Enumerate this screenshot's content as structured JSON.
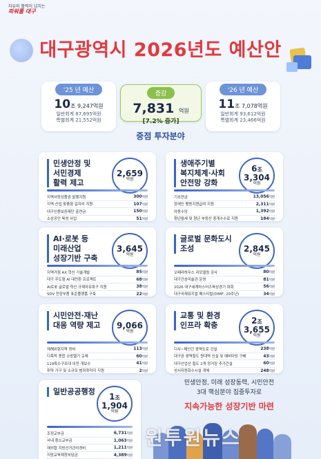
{
  "slogan": {
    "line1": "자유와 활력이 넘치는",
    "line2": "파워풀 대구"
  },
  "title": "대구광역시 2026년도 예산안",
  "summary": {
    "prev": {
      "label": "'25 년 예산",
      "amount_jo": "10",
      "amount_rest": "조 9,247",
      "unit": "억원",
      "general": "일반회계 87,695억원",
      "special": "특별회계 21,552억원"
    },
    "change": {
      "label": "증감",
      "amount": "7,831",
      "unit": "억원",
      "pct": "[7.2% 증가]"
    },
    "next": {
      "label": "'26 년 예산",
      "amount_jo": "11",
      "amount_rest": "조 7,078",
      "unit": "억원",
      "general": "일반회계 93,612억원",
      "special": "특별회계 23,466억원"
    }
  },
  "section_title": "중점 투자분야",
  "panels": [
    {
      "title": [
        "민생안정 및",
        "서민경제",
        "활력 제고"
      ],
      "total": "2,659",
      "total_jo": "",
      "unit": "억원",
      "items": [
        {
          "label": "지역사랑상품권 발행지원",
          "value": "300",
          "unit": "억원"
        },
        {
          "label": "지역·산업 맞춤형 일자리 지원",
          "value": "107",
          "unit": "억원"
        },
        {
          "label": "대구신용보증재단 출연금",
          "value": "150",
          "unit": "억원"
        },
        {
          "label": "소상공인 육성 사업",
          "value": "51",
          "unit": "억원"
        }
      ]
    },
    {
      "title": [
        "생애주기별",
        "복지체계·사회",
        "안전망 강화"
      ],
      "total": "3,304",
      "total_jo": "6",
      "unit": "억원",
      "items": [
        {
          "label": "기초연금",
          "value": "13,056",
          "unit": "억원"
        },
        {
          "label": "장애인 활동지원급여 지원",
          "value": "2,311",
          "unit": "억원"
        },
        {
          "label": "아동수당",
          "value": "1,392",
          "unit": "억원"
        },
        {
          "label": "청년월세 및 청년 부동산 중개수수료 지원",
          "value": "184",
          "unit": "억원"
        }
      ]
    },
    {
      "title": [
        "AI·로봇 등",
        "미래산업",
        "성장기반 구축"
      ],
      "total": "3,645",
      "total_jo": "",
      "unit": "억원",
      "items": [
        {
          "label": "지역거점 AX 혁신 기술개발",
          "value": "85",
          "unit": "억원"
        },
        {
          "label": "대구 주도형 AI 대전환 프로젝트",
          "value": "68",
          "unit": "억원"
        },
        {
          "label": "AI로봇 글로벌 혁신 규제자유특구 지원",
          "value": "38",
          "unit": "억원"
        },
        {
          "label": "SDV 전장부품 표준플랫폼 구축",
          "value": "22",
          "unit": "억원"
        }
      ]
    },
    {
      "title": [
        "글로벌 문화도시",
        "조성"
      ],
      "total": "2,845",
      "total_jo": "",
      "unit": "억원",
      "items": [
        {
          "label": "오페라하우스 리모델링 공사",
          "value": "80",
          "unit": "억원"
        },
        {
          "label": "대구간송미술관 운영",
          "value": "81",
          "unit": "억원"
        },
        {
          "label": "2026 대구세계마스터즈육상경기 대회",
          "value": "56",
          "unit": "억원"
        },
        {
          "label": "대구국제뮤지컬 페스티벌(DIMF, 20주년)",
          "value": "34",
          "unit": "억원"
        }
      ]
    },
    {
      "title": [
        "시민안전·재난",
        "대응 역량 제고"
      ],
      "total": "9,066",
      "total_jo": "",
      "unit": "억원",
      "items": [
        {
          "label": "재해위험지역 정비",
          "value": "113",
          "unit": "억원"
        },
        {
          "label": "디목적 종합 소방헬기 교체",
          "value": "60",
          "unit": "억원"
        },
        {
          "label": "119특수구조대 이전 개보수",
          "value": "41",
          "unit": "억원"
        },
        {
          "label": "취약 가구 및 소규모 범죄취약지 지원",
          "value": "2",
          "unit": "억원"
        }
      ]
    },
    {
      "title": [
        "교통 및 환경",
        "인프라 확충"
      ],
      "total": "3,655",
      "total_jo": "2",
      "unit": "억원",
      "items": [
        {
          "label": "디사~해안간 광역도로 건설",
          "value": "238",
          "unit": "억원"
        },
        {
          "label": "대구권 광역철도 원대역 신설 및 예비타당 구배",
          "value": "43",
          "unit": "억원"
        },
        {
          "label": "대구산업선 철도 2개 정거장 추가건설",
          "value": "60",
          "unit": "억원"
        },
        {
          "label": "성서자원회수시설 개체",
          "value": "248",
          "unit": "억원"
        }
      ]
    },
    {
      "title": [
        "일반공공행정"
      ],
      "total": "1,904",
      "total_jo": "1",
      "unit": "억원",
      "items": [
        {
          "label": "조정교부금",
          "value": "6,731",
          "unit": "억원"
        },
        {
          "label": "사내 청소교부금",
          "value": "1,063",
          "unit": "억원"
        },
        {
          "label": "재외협 지방선거관리경비",
          "value": "1,211",
          "unit": "억원"
        },
        {
          "label": "지방교육재정부담금",
          "value": "4,389",
          "unit": "억원"
        }
      ]
    }
  ],
  "closing": {
    "line1": "민생안정, 미래 성장동력, 시민안전",
    "line2": "3대 핵심분야 집중투자로",
    "line3": "지속가능한 성장기반 마련"
  },
  "watermark": "원투원뉴스",
  "colors": {
    "accent_red": "#e03a3e",
    "accent_blue": "#3b63c9",
    "change_green": "#8ac04b"
  }
}
